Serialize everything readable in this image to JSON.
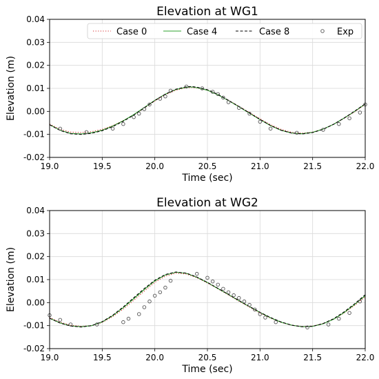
{
  "chart_data": [
    {
      "type": "line",
      "title": "Elevation at WG1",
      "xlabel": "Time (sec)",
      "ylabel": "Elevation (m)",
      "xlim": [
        19.0,
        22.0
      ],
      "ylim": [
        -0.02,
        0.04
      ],
      "xticks": [
        "19.0",
        "19.5",
        "20.0",
        "20.5",
        "21.0",
        "21.5",
        "22.0"
      ],
      "yticks": [
        "-0.02",
        "-0.01",
        "0.00",
        "0.01",
        "0.02",
        "0.03",
        "0.04"
      ],
      "grid": true,
      "legend": "top-right",
      "series": [
        {
          "name": "Case 0",
          "style": "dotted",
          "color": "#d62728",
          "x": [
            19.0,
            19.1,
            19.2,
            19.3,
            19.4,
            19.5,
            19.6,
            19.7,
            19.8,
            19.9,
            20.0,
            20.1,
            20.2,
            20.3,
            20.35,
            20.4,
            20.5,
            20.6,
            20.7,
            20.8,
            20.9,
            21.0,
            21.1,
            21.2,
            21.3,
            21.4,
            21.5,
            21.6,
            21.7,
            21.8,
            21.9,
            22.0
          ],
          "y": [
            -0.0055,
            -0.0078,
            -0.009,
            -0.0092,
            -0.0088,
            -0.0078,
            -0.0062,
            -0.004,
            -0.0015,
            0.0015,
            0.0045,
            0.0072,
            0.0092,
            0.0103,
            0.0104,
            0.0102,
            0.0092,
            0.0072,
            0.0048,
            0.0022,
            -0.0005,
            -0.0032,
            -0.0058,
            -0.0078,
            -0.0091,
            -0.0095,
            -0.009,
            -0.0077,
            -0.0056,
            -0.003,
            -0.0002,
            0.003
          ]
        },
        {
          "name": "Case 4",
          "style": "solid",
          "color": "#2ca02c",
          "x": [
            19.0,
            19.1,
            19.2,
            19.3,
            19.4,
            19.5,
            19.6,
            19.7,
            19.8,
            19.9,
            20.0,
            20.1,
            20.2,
            20.3,
            20.35,
            20.4,
            20.5,
            20.6,
            20.7,
            20.8,
            20.9,
            21.0,
            21.1,
            21.2,
            21.3,
            21.4,
            21.5,
            21.6,
            21.7,
            21.8,
            21.9,
            22.0
          ],
          "y": [
            -0.0058,
            -0.0082,
            -0.0096,
            -0.0098,
            -0.0093,
            -0.0082,
            -0.0064,
            -0.0041,
            -0.0014,
            0.0017,
            0.0048,
            0.0075,
            0.0095,
            0.0105,
            0.0106,
            0.0103,
            0.0092,
            0.0072,
            0.0047,
            0.002,
            -0.0008,
            -0.0036,
            -0.0062,
            -0.0082,
            -0.0094,
            -0.0097,
            -0.0091,
            -0.0077,
            -0.0056,
            -0.0029,
            0.0,
            0.0032
          ]
        },
        {
          "name": "Case 8",
          "style": "dashed",
          "color": "#000000",
          "x": [
            19.0,
            19.1,
            19.2,
            19.3,
            19.4,
            19.5,
            19.6,
            19.7,
            19.8,
            19.9,
            20.0,
            20.1,
            20.2,
            20.3,
            20.35,
            20.4,
            20.5,
            20.6,
            20.7,
            20.8,
            20.9,
            21.0,
            21.1,
            21.2,
            21.3,
            21.4,
            21.5,
            21.6,
            21.7,
            21.8,
            21.9,
            22.0
          ],
          "y": [
            -0.0058,
            -0.0083,
            -0.0097,
            -0.01,
            -0.0095,
            -0.0084,
            -0.0066,
            -0.0043,
            -0.0016,
            0.0015,
            0.0047,
            0.0075,
            0.0096,
            0.0107,
            0.0108,
            0.0105,
            0.0094,
            0.0074,
            0.0048,
            0.0021,
            -0.0007,
            -0.0035,
            -0.0061,
            -0.0082,
            -0.0094,
            -0.0098,
            -0.0092,
            -0.0078,
            -0.0056,
            -0.0029,
            0.0001,
            0.0033
          ]
        },
        {
          "name": "Exp",
          "style": "markers",
          "color": "#555555",
          "x": [
            19.1,
            19.35,
            19.6,
            19.7,
            19.8,
            19.85,
            19.9,
            19.95,
            20.05,
            20.1,
            20.15,
            20.3,
            20.45,
            20.55,
            20.6,
            20.65,
            20.7,
            20.8,
            20.9,
            21.0,
            21.1,
            21.35,
            21.6,
            21.75,
            21.85,
            21.95,
            22.0
          ],
          "y": [
            -0.0075,
            -0.009,
            -0.0075,
            -0.0055,
            -0.0025,
            -0.001,
            0.001,
            0.003,
            0.0055,
            0.0065,
            0.009,
            0.0108,
            0.01,
            0.0085,
            0.0075,
            0.006,
            0.004,
            0.0015,
            -0.001,
            -0.0045,
            -0.0075,
            -0.0093,
            -0.008,
            -0.0055,
            -0.003,
            -0.0005,
            0.003
          ]
        }
      ]
    },
    {
      "type": "line",
      "title": "Elevation at WG2",
      "xlabel": "Time (sec)",
      "ylabel": "Elevation (m)",
      "xlim": [
        19.0,
        22.0
      ],
      "ylim": [
        -0.02,
        0.04
      ],
      "xticks": [
        "19.0",
        "19.5",
        "20.0",
        "20.5",
        "21.0",
        "21.5",
        "22.0"
      ],
      "yticks": [
        "-0.02",
        "-0.01",
        "0.00",
        "0.01",
        "0.02",
        "0.03",
        "0.04"
      ],
      "grid": true,
      "series": [
        {
          "name": "Case 0",
          "style": "dotted",
          "color": "#d62728",
          "x": [
            19.0,
            19.1,
            19.2,
            19.3,
            19.4,
            19.5,
            19.6,
            19.7,
            19.8,
            19.9,
            20.0,
            20.1,
            20.2,
            20.3,
            20.4,
            20.5,
            20.6,
            20.7,
            20.8,
            20.9,
            21.0,
            21.1,
            21.2,
            21.3,
            21.4,
            21.5,
            21.6,
            21.7,
            21.8,
            21.9,
            22.0
          ],
          "y": [
            -0.0065,
            -0.0085,
            -0.0098,
            -0.0103,
            -0.01,
            -0.0086,
            -0.0061,
            -0.0028,
            0.001,
            0.005,
            0.0088,
            0.0115,
            0.0128,
            0.0124,
            0.0108,
            0.0085,
            0.006,
            0.0033,
            0.0006,
            -0.002,
            -0.0045,
            -0.0068,
            -0.0086,
            -0.0098,
            -0.0104,
            -0.0102,
            -0.0091,
            -0.0072,
            -0.0045,
            -0.0012,
            0.0025
          ]
        },
        {
          "name": "Case 4",
          "style": "solid",
          "color": "#2ca02c",
          "x": [
            19.0,
            19.1,
            19.2,
            19.3,
            19.4,
            19.5,
            19.6,
            19.7,
            19.8,
            19.9,
            20.0,
            20.1,
            20.2,
            20.3,
            20.4,
            20.5,
            20.6,
            20.7,
            20.8,
            20.9,
            21.0,
            21.1,
            21.2,
            21.3,
            21.4,
            21.5,
            21.6,
            21.7,
            21.8,
            21.9,
            22.0
          ],
          "y": [
            -0.0068,
            -0.0088,
            -0.0101,
            -0.0105,
            -0.01,
            -0.0084,
            -0.0057,
            -0.0022,
            0.0017,
            0.0057,
            0.0094,
            0.012,
            0.0132,
            0.0127,
            0.011,
            0.0087,
            0.0061,
            0.0035,
            0.0008,
            -0.0018,
            -0.0043,
            -0.0066,
            -0.0085,
            -0.0098,
            -0.0105,
            -0.0103,
            -0.0092,
            -0.0072,
            -0.0043,
            -0.0008,
            0.003
          ]
        },
        {
          "name": "Case 8",
          "style": "dashed",
          "color": "#000000",
          "x": [
            19.0,
            19.1,
            19.2,
            19.3,
            19.4,
            19.5,
            19.6,
            19.7,
            19.8,
            19.9,
            20.0,
            20.1,
            20.2,
            20.3,
            20.4,
            20.5,
            20.6,
            20.7,
            20.8,
            20.9,
            21.0,
            21.1,
            21.2,
            21.3,
            21.4,
            21.5,
            21.6,
            21.7,
            21.8,
            21.9,
            22.0
          ],
          "y": [
            -0.0068,
            -0.0089,
            -0.0102,
            -0.0106,
            -0.01,
            -0.0083,
            -0.0055,
            -0.0019,
            0.0021,
            0.0061,
            0.0097,
            0.0122,
            0.0133,
            0.0128,
            0.0111,
            0.0088,
            0.0062,
            0.0036,
            0.0009,
            -0.0017,
            -0.0042,
            -0.0065,
            -0.0084,
            -0.0098,
            -0.0105,
            -0.0103,
            -0.0091,
            -0.007,
            -0.004,
            -0.0005,
            0.0034
          ]
        },
        {
          "name": "Exp",
          "style": "markers",
          "color": "#555555",
          "x": [
            19.0,
            19.1,
            19.2,
            19.45,
            19.7,
            19.75,
            19.85,
            19.9,
            19.95,
            20.0,
            20.05,
            20.1,
            20.15,
            20.4,
            20.5,
            20.55,
            20.6,
            20.65,
            20.7,
            20.75,
            20.8,
            20.85,
            20.9,
            20.95,
            21.0,
            21.05,
            21.15,
            21.45,
            21.65,
            21.75,
            21.85,
            21.95
          ],
          "y": [
            -0.0055,
            -0.0075,
            -0.0095,
            -0.0095,
            -0.0085,
            -0.007,
            -0.005,
            -0.002,
            0.0005,
            0.003,
            0.0045,
            0.0065,
            0.0095,
            0.0125,
            0.0108,
            0.0092,
            0.0078,
            0.006,
            0.0045,
            0.0032,
            0.002,
            0.0005,
            -0.001,
            -0.003,
            -0.005,
            -0.0065,
            -0.0085,
            -0.0108,
            -0.0095,
            -0.007,
            -0.0045,
            0.0005
          ]
        }
      ]
    }
  ]
}
